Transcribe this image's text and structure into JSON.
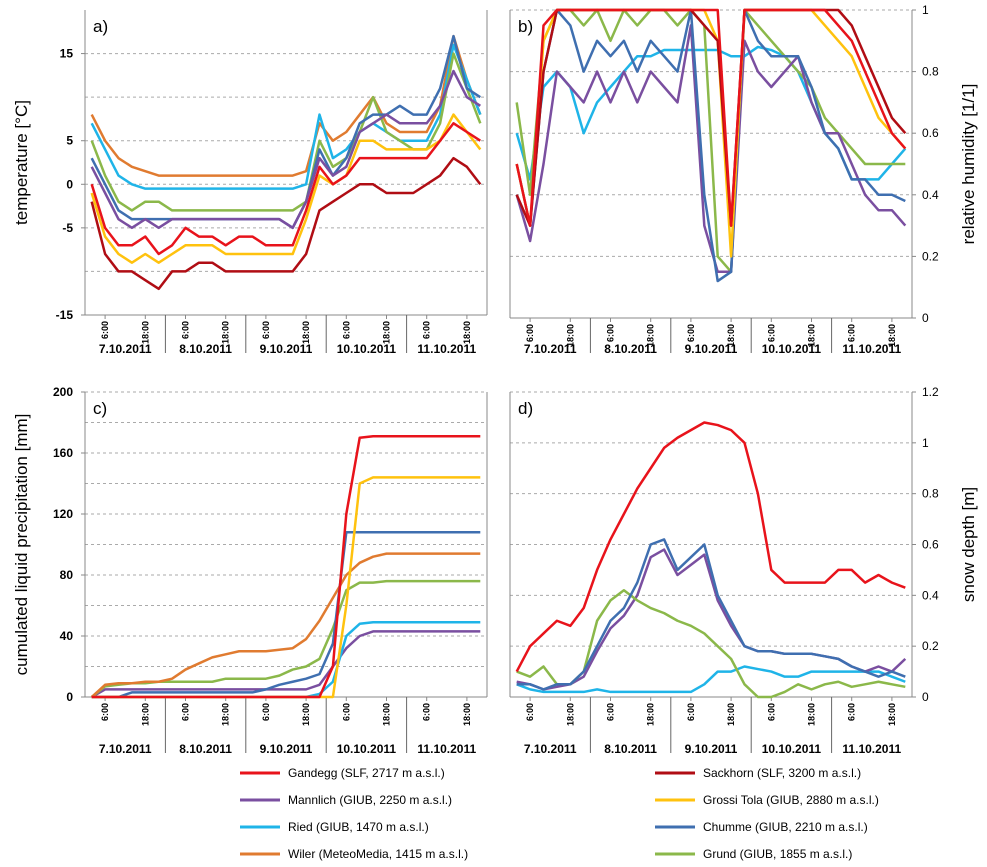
{
  "chart_data": [
    {
      "type": "line",
      "panel_label": "a)",
      "y_label": "temperature [°C]",
      "y_side": "left",
      "ylim": [
        -15,
        20
      ],
      "yticks": [
        -15,
        -5,
        0,
        5,
        15
      ],
      "minor_grid": [
        -10,
        10
      ],
      "days": [
        "7.10.2011",
        "8.10.2011",
        "9.10.2011",
        "10.10.2011",
        "11.10.2011"
      ],
      "hour_ticks": [
        "6:00",
        "18:00"
      ],
      "series": [
        {
          "color": "#e07b30",
          "values": [
            8,
            5,
            3,
            2,
            1.5,
            1,
            1,
            1,
            1,
            1,
            1,
            1,
            1,
            1,
            1,
            1,
            1.5,
            7,
            5,
            6,
            8,
            10,
            7,
            6,
            6,
            6,
            9,
            17,
            12,
            8
          ]
        },
        {
          "color": "#1fb4e8",
          "values": [
            7,
            4,
            1,
            0,
            -0.5,
            -0.5,
            -0.5,
            -0.5,
            -0.5,
            -0.5,
            -0.5,
            -0.5,
            -0.5,
            -0.5,
            -0.5,
            -0.5,
            0,
            8,
            3,
            4,
            6,
            7,
            6,
            5,
            5,
            5,
            8,
            16,
            12,
            8
          ]
        },
        {
          "color": "#8bb84a",
          "values": [
            5,
            1,
            -2,
            -3,
            -2,
            -2,
            -3,
            -3,
            -3,
            -3,
            -3,
            -3,
            -3,
            -3,
            -3,
            -3,
            -2,
            5,
            2,
            3,
            6,
            10,
            6,
            5,
            4,
            4,
            7,
            15,
            11,
            7
          ]
        },
        {
          "color": "#3f6fb0",
          "values": [
            3,
            0,
            -3,
            -4,
            -4,
            -4,
            -4,
            -4,
            -4,
            -4,
            -4,
            -4,
            -4,
            -4,
            -4,
            -5,
            -2,
            4,
            1,
            3,
            7,
            8,
            8,
            9,
            8,
            8,
            11,
            17,
            11,
            10
          ]
        },
        {
          "color": "#7a4fa0",
          "values": [
            2,
            -1,
            -4,
            -5,
            -4,
            -5,
            -4,
            -4,
            -4,
            -4,
            -4,
            -4,
            -4,
            -4,
            -4,
            -5,
            -2,
            3,
            1,
            2,
            6,
            7,
            8,
            7,
            7,
            7,
            9,
            13,
            10,
            9
          ]
        },
        {
          "color": "#ffc20e",
          "values": [
            -1,
            -6,
            -8,
            -9,
            -8,
            -9,
            -8,
            -7,
            -7,
            -7,
            -8,
            -8,
            -8,
            -8,
            -8,
            -8,
            -4,
            1,
            0,
            1,
            5,
            5,
            4,
            4,
            4,
            4,
            5,
            8,
            6,
            4
          ]
        },
        {
          "color": "#e8131b",
          "values": [
            0,
            -5,
            -7,
            -7,
            -6,
            -8,
            -7,
            -5,
            -6,
            -6,
            -7,
            -6,
            -6,
            -7,
            -7,
            -7,
            -3,
            2,
            0,
            1,
            3,
            3,
            3,
            3,
            3,
            3,
            5,
            7,
            6,
            5
          ]
        },
        {
          "color": "#b00d14",
          "values": [
            -2,
            -8,
            -10,
            -10,
            -11,
            -12,
            -10,
            -10,
            -9,
            -9,
            -10,
            -10,
            -10,
            -10,
            -10,
            -10,
            -8,
            -3,
            -2,
            -1,
            0,
            0,
            -1,
            -1,
            -1,
            0,
            1,
            3,
            2,
            0
          ]
        }
      ]
    },
    {
      "type": "line",
      "panel_label": "b)",
      "y_label": "relative humidity [1/1]",
      "y_side": "right",
      "ylim": [
        0,
        1
      ],
      "yticks": [
        0,
        0.2,
        0.4,
        0.6,
        0.8,
        1
      ],
      "minor_grid": [],
      "days": [
        "7.10.2011",
        "8.10.2011",
        "9.10.2011",
        "10.10.2011",
        "11.10.2011"
      ],
      "hour_ticks": [
        "6:00",
        "18:00"
      ],
      "series": [
        {
          "color": "#1fb4e8",
          "values": [
            0.6,
            0.45,
            0.75,
            0.8,
            0.75,
            0.6,
            0.7,
            0.75,
            0.8,
            0.85,
            0.85,
            0.87,
            0.87,
            0.87,
            0.87,
            0.87,
            0.85,
            0.85,
            0.88,
            0.87,
            0.85,
            0.8,
            0.7,
            0.6,
            0.55,
            0.45,
            0.45,
            0.45,
            0.5,
            0.55
          ]
        },
        {
          "color": "#8bb84a",
          "values": [
            0.7,
            0.4,
            0.9,
            1,
            1,
            0.95,
            1,
            0.9,
            1,
            0.95,
            1,
            1,
            0.95,
            1,
            0.95,
            0.2,
            0.15,
            1,
            0.95,
            0.9,
            0.85,
            0.8,
            0.75,
            0.65,
            0.6,
            0.55,
            0.5,
            0.5,
            0.5,
            0.5
          ]
        },
        {
          "color": "#7a4fa0",
          "values": [
            0.4,
            0.25,
            0.5,
            0.8,
            0.75,
            0.7,
            0.8,
            0.7,
            0.8,
            0.7,
            0.8,
            0.75,
            0.7,
            0.95,
            0.3,
            0.15,
            0.15,
            0.9,
            0.8,
            0.75,
            0.8,
            0.85,
            0.7,
            0.6,
            0.6,
            0.5,
            0.4,
            0.35,
            0.35,
            0.3
          ]
        },
        {
          "color": "#3f6fb0",
          "values": [
            0.5,
            0.3,
            0.8,
            1,
            0.95,
            0.8,
            0.9,
            0.85,
            0.9,
            0.8,
            0.9,
            0.85,
            0.8,
            1,
            0.4,
            0.12,
            0.15,
            1,
            0.9,
            0.85,
            0.85,
            0.85,
            0.75,
            0.6,
            0.55,
            0.45,
            0.45,
            0.4,
            0.4,
            0.38
          ]
        },
        {
          "color": "#ffc20e",
          "values": [
            0.5,
            0.3,
            0.9,
            1,
            1,
            1,
            1,
            1,
            1,
            1,
            1,
            1,
            1,
            1,
            1,
            0.9,
            0.2,
            1,
            1,
            1,
            1,
            1,
            1,
            0.95,
            0.9,
            0.85,
            0.75,
            0.65,
            0.6,
            0.55
          ]
        },
        {
          "color": "#b00d14",
          "values": [
            0.4,
            0.3,
            0.8,
            1,
            1,
            1,
            1,
            1,
            1,
            1,
            1,
            1,
            1,
            1,
            0.95,
            0.9,
            0.3,
            1,
            1,
            1,
            1,
            1,
            1,
            1,
            1,
            0.95,
            0.85,
            0.75,
            0.65,
            0.6
          ]
        },
        {
          "color": "#e8131b",
          "values": [
            0.5,
            0.3,
            0.95,
            1,
            1,
            1,
            1,
            1,
            1,
            1,
            1,
            1,
            1,
            1,
            1,
            1,
            0.3,
            1,
            1,
            1,
            1,
            1,
            1,
            1,
            0.95,
            0.9,
            0.8,
            0.7,
            0.6,
            0.55
          ]
        }
      ]
    },
    {
      "type": "line",
      "panel_label": "c)",
      "y_label": "cumulated liquid precipitation [mm]",
      "y_side": "left",
      "ylim": [
        0,
        200
      ],
      "yticks": [
        0,
        40,
        80,
        120,
        160,
        200
      ],
      "minor_grid": [
        20,
        60,
        100,
        140,
        180
      ],
      "days": [
        "7.10.2011",
        "8.10.2011",
        "9.10.2011",
        "10.10.2011",
        "11.10.2011"
      ],
      "hour_ticks": [
        "6:00",
        "18:00"
      ],
      "series": [
        {
          "color": "#7a4fa0",
          "values": [
            0,
            5,
            5,
            5,
            5,
            5,
            5,
            5,
            5,
            5,
            5,
            5,
            5,
            5,
            5,
            5,
            5,
            8,
            20,
            32,
            40,
            43,
            43,
            43,
            43,
            43,
            43,
            43,
            43,
            43
          ]
        },
        {
          "color": "#1fb4e8",
          "values": [
            0,
            0,
            0,
            0,
            0,
            0,
            0,
            0,
            0,
            0,
            0,
            0,
            0,
            0,
            0,
            0,
            0,
            2,
            10,
            40,
            48,
            49,
            49,
            49,
            49,
            49,
            49,
            49,
            49,
            49
          ]
        },
        {
          "color": "#8bb84a",
          "values": [
            0,
            7,
            8,
            9,
            9,
            10,
            10,
            10,
            10,
            10,
            12,
            12,
            12,
            12,
            14,
            18,
            20,
            25,
            45,
            70,
            75,
            75,
            76,
            76,
            76,
            76,
            76,
            76,
            76,
            76
          ]
        },
        {
          "color": "#e07b30",
          "values": [
            0,
            8,
            9,
            9,
            10,
            10,
            12,
            18,
            22,
            26,
            28,
            30,
            30,
            30,
            31,
            32,
            38,
            50,
            65,
            80,
            88,
            92,
            94,
            94,
            94,
            94,
            94,
            94,
            94,
            94
          ]
        },
        {
          "color": "#3f6fb0",
          "values": [
            0,
            0,
            0,
            3,
            3,
            3,
            3,
            3,
            3,
            3,
            3,
            3,
            3,
            5,
            8,
            10,
            12,
            15,
            35,
            108,
            108,
            108,
            108,
            108,
            108,
            108,
            108,
            108,
            108,
            108
          ]
        },
        {
          "color": "#ffc20e",
          "values": [
            0,
            0,
            0,
            0,
            0,
            0,
            0,
            0,
            0,
            0,
            0,
            0,
            0,
            0,
            0,
            0,
            0,
            0,
            0,
            60,
            140,
            144,
            144,
            144,
            144,
            144,
            144,
            144,
            144,
            144
          ]
        },
        {
          "color": "#e8131b",
          "values": [
            0,
            0,
            0,
            0,
            0,
            0,
            0,
            0,
            0,
            0,
            0,
            0,
            0,
            0,
            0,
            0,
            0,
            0,
            20,
            120,
            170,
            171,
            171,
            171,
            171,
            171,
            171,
            171,
            171,
            171
          ]
        }
      ]
    },
    {
      "type": "line",
      "panel_label": "d)",
      "y_label": "snow depth [m]",
      "y_side": "right",
      "ylim": [
        0,
        1.2
      ],
      "yticks": [
        0,
        0.2,
        0.4,
        0.6,
        0.8,
        1,
        1.2
      ],
      "minor_grid": [],
      "days": [
        "7.10.2011",
        "8.10.2011",
        "9.10.2011",
        "10.10.2011",
        "11.10.2011"
      ],
      "hour_ticks": [
        "6:00",
        "18:00"
      ],
      "series": [
        {
          "color": "#1fb4e8",
          "values": [
            0.05,
            0.03,
            0.02,
            0.02,
            0.02,
            0.02,
            0.03,
            0.02,
            0.02,
            0.02,
            0.02,
            0.02,
            0.02,
            0.02,
            0.05,
            0.1,
            0.1,
            0.12,
            0.11,
            0.1,
            0.08,
            0.08,
            0.1,
            0.1,
            0.1,
            0.1,
            0.1,
            0.1,
            0.08,
            0.06
          ]
        },
        {
          "color": "#7a4fa0",
          "values": [
            0.06,
            0.05,
            0.03,
            0.04,
            0.05,
            0.08,
            0.18,
            0.27,
            0.32,
            0.4,
            0.55,
            0.58,
            0.48,
            0.52,
            0.56,
            0.38,
            0.28,
            0.2,
            0.18,
            0.18,
            0.17,
            0.17,
            0.17,
            0.16,
            0.15,
            0.12,
            0.1,
            0.12,
            0.1,
            0.15
          ]
        },
        {
          "color": "#8bb84a",
          "values": [
            0.1,
            0.08,
            0.12,
            0.05,
            0.05,
            0.1,
            0.3,
            0.38,
            0.42,
            0.38,
            0.35,
            0.33,
            0.3,
            0.28,
            0.25,
            0.2,
            0.15,
            0.05,
            0,
            0,
            0.02,
            0.05,
            0.03,
            0.05,
            0.06,
            0.04,
            0.05,
            0.06,
            0.05,
            0.04
          ]
        },
        {
          "color": "#3f6fb0",
          "values": [
            0.05,
            0.05,
            0.03,
            0.05,
            0.05,
            0.1,
            0.2,
            0.3,
            0.35,
            0.45,
            0.6,
            0.62,
            0.5,
            0.55,
            0.6,
            0.4,
            0.3,
            0.2,
            0.18,
            0.18,
            0.17,
            0.17,
            0.17,
            0.16,
            0.15,
            0.12,
            0.1,
            0.08,
            0.1,
            0.08
          ]
        },
        {
          "color": "#e8131b",
          "values": [
            0.1,
            0.2,
            0.25,
            0.3,
            0.28,
            0.35,
            0.5,
            0.62,
            0.72,
            0.82,
            0.9,
            0.98,
            1.02,
            1.05,
            1.08,
            1.07,
            1.05,
            1,
            0.8,
            0.5,
            0.45,
            0.45,
            0.45,
            0.45,
            0.5,
            0.5,
            0.45,
            0.48,
            0.45,
            0.43
          ]
        }
      ]
    }
  ],
  "legend": [
    {
      "name": "Gandegg (SLF, 2717 m a.s.l.)",
      "color": "#e8131b"
    },
    {
      "name": "Mannlich (GIUB, 2250 m a.s.l.)",
      "color": "#7a4fa0"
    },
    {
      "name": "Ried (GIUB, 1470 m a.s.l.)",
      "color": "#1fb4e8"
    },
    {
      "name": "Wiler (MeteoMedia, 1415 m a.s.l.)",
      "color": "#e07b30"
    },
    {
      "name": "Sackhorn (SLF, 3200 m a.s.l.)",
      "color": "#b00d14"
    },
    {
      "name": "Grossi Tola (GIUB, 2880 m a.s.l.)",
      "color": "#ffc20e"
    },
    {
      "name": "Chumme (GIUB, 2210 m a.s.l.)",
      "color": "#3f6fb0"
    },
    {
      "name": "Grund (GIUB, 1855 m a.s.l.)",
      "color": "#8bb84a"
    }
  ]
}
